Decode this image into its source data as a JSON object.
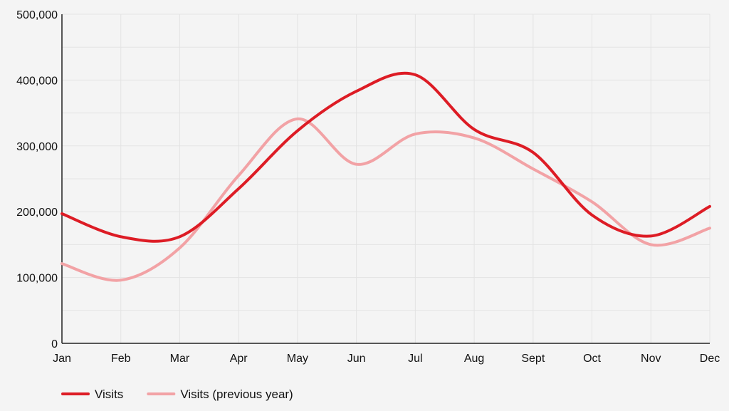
{
  "chart_data": {
    "type": "line",
    "categories": [
      "Jan",
      "Feb",
      "Mar",
      "Apr",
      "May",
      "Jun",
      "Jul",
      "Aug",
      "Sept",
      "Oct",
      "Nov",
      "Dec"
    ],
    "series": [
      {
        "name": "Visits",
        "color": "#dd1c25",
        "values": [
          197000,
          162000,
          162000,
          235000,
          323000,
          383000,
          408000,
          325000,
          290000,
          195000,
          163000,
          208000
        ]
      },
      {
        "name": "Visits (previous year)",
        "color": "#f2a2a5",
        "values": [
          121000,
          96000,
          145000,
          255000,
          341000,
          272000,
          318000,
          312000,
          265000,
          215000,
          150000,
          175000
        ]
      }
    ],
    "y_ticks": [
      0,
      100000,
      200000,
      300000,
      400000,
      500000
    ],
    "y_tick_labels": [
      "0",
      "100,000",
      "200,000",
      "300,000",
      "400,000",
      "500,000"
    ],
    "ylim": [
      0,
      500000
    ],
    "grid": true,
    "legend_position": "bottom-left",
    "title": "",
    "xlabel": "",
    "ylabel": ""
  }
}
